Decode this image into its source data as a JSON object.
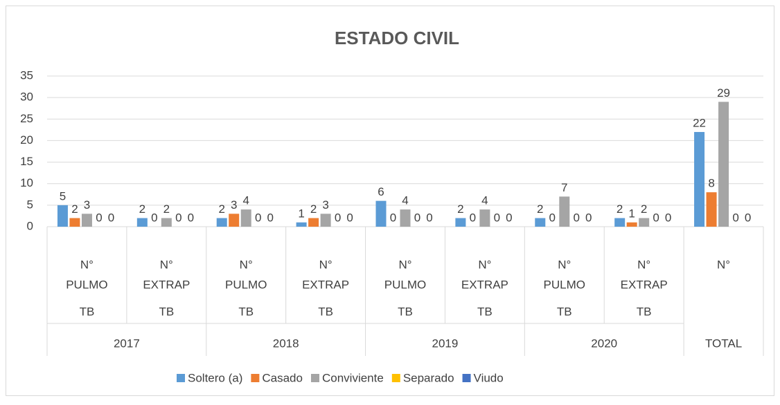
{
  "chart_data": {
    "type": "bar",
    "title": "ESTADO CIVIL",
    "groups": [
      {
        "name": "2017",
        "categories": [
          [
            "N°",
            "PULMO",
            "TB"
          ],
          [
            "N°",
            "EXTRAP",
            "TB"
          ]
        ]
      },
      {
        "name": "2018",
        "categories": [
          [
            "N°",
            "PULMO",
            "TB"
          ],
          [
            "N°",
            "EXTRAP",
            "TB"
          ]
        ]
      },
      {
        "name": "2019",
        "categories": [
          [
            "N°",
            "PULMO",
            "TB"
          ],
          [
            "N°",
            "EXTRAP",
            "TB"
          ]
        ]
      },
      {
        "name": "2020",
        "categories": [
          [
            "N°",
            "PULMO",
            "TB"
          ],
          [
            "N°",
            "EXTRAP",
            "TB"
          ]
        ]
      },
      {
        "name": "TOTAL",
        "categories": [
          [
            "N°"
          ]
        ]
      }
    ],
    "series": [
      {
        "name": "Soltero (a)",
        "color": "#5b9bd5",
        "values": [
          5,
          2,
          2,
          1,
          6,
          2,
          2,
          2,
          22
        ]
      },
      {
        "name": "Casado",
        "color": "#ed7d31",
        "values": [
          2,
          0,
          3,
          2,
          0,
          0,
          0,
          1,
          8
        ]
      },
      {
        "name": "Conviviente",
        "color": "#a5a5a5",
        "values": [
          3,
          2,
          4,
          3,
          4,
          4,
          7,
          2,
          29
        ]
      },
      {
        "name": "Separado",
        "color": "#ffc000",
        "values": [
          0,
          0,
          0,
          0,
          0,
          0,
          0,
          0,
          0
        ]
      },
      {
        "name": "Viudo",
        "color": "#4472c4",
        "values": [
          0,
          0,
          0,
          0,
          0,
          0,
          0,
          0,
          0
        ]
      }
    ],
    "ylim": [
      0,
      35
    ],
    "yticks": [
      0,
      5,
      10,
      15,
      20,
      25,
      30,
      35
    ],
    "grid": true,
    "legend": "bottom"
  }
}
